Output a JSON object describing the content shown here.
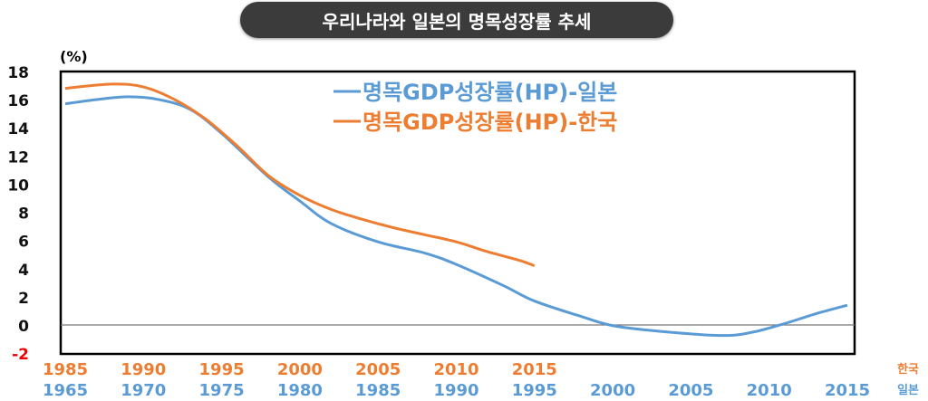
{
  "chart_data": {
    "type": "line",
    "title": "우리나라와 일본의 명목성장률 추세",
    "ylabel": "(%)",
    "ylim": [
      -2,
      18
    ],
    "yticks": [
      18,
      16,
      14,
      12,
      10,
      8,
      6,
      4,
      2,
      0,
      -2
    ],
    "grid": false,
    "legend_position": "top-right",
    "x_axes": [
      {
        "name": "한국",
        "ticks": [
          1985,
          1990,
          1995,
          2000,
          2005,
          2010,
          2015
        ],
        "color": "#ED7D31"
      },
      {
        "name": "일본",
        "ticks": [
          1965,
          1970,
          1975,
          1980,
          1985,
          1990,
          1995,
          2000,
          2005,
          2010,
          2015
        ],
        "color": "#5B9BD5"
      }
    ],
    "series": [
      {
        "name": "명목GDP성장률(HP)-일본",
        "color": "#5B9BD5",
        "axis": "일본",
        "x": [
          1965,
          1967,
          1969,
          1971,
          1973,
          1975,
          1978,
          1980,
          1982,
          1985,
          1988,
          1990,
          1993,
          1995,
          1998,
          2000,
          2003,
          2007,
          2009,
          2011,
          2013,
          2015
        ],
        "y": [
          15.7,
          16.0,
          16.2,
          16.0,
          15.3,
          13.6,
          10.5,
          8.8,
          7.2,
          5.9,
          5.1,
          4.3,
          2.8,
          1.7,
          0.6,
          -0.05,
          -0.45,
          -0.75,
          -0.5,
          0.1,
          0.8,
          1.4
        ]
      },
      {
        "name": "명목GDP성장률(HP)-한국",
        "color": "#ED7D31",
        "axis": "한국",
        "x": [
          1985,
          1988,
          1990,
          1992,
          1994,
          1996,
          1998,
          2000,
          2002,
          2004,
          2006,
          2008,
          2010,
          2012,
          2014,
          2015
        ],
        "y": [
          16.8,
          17.1,
          16.9,
          16.0,
          14.6,
          12.7,
          10.6,
          9.2,
          8.2,
          7.5,
          6.9,
          6.4,
          5.9,
          5.2,
          4.6,
          4.2
        ]
      }
    ]
  }
}
